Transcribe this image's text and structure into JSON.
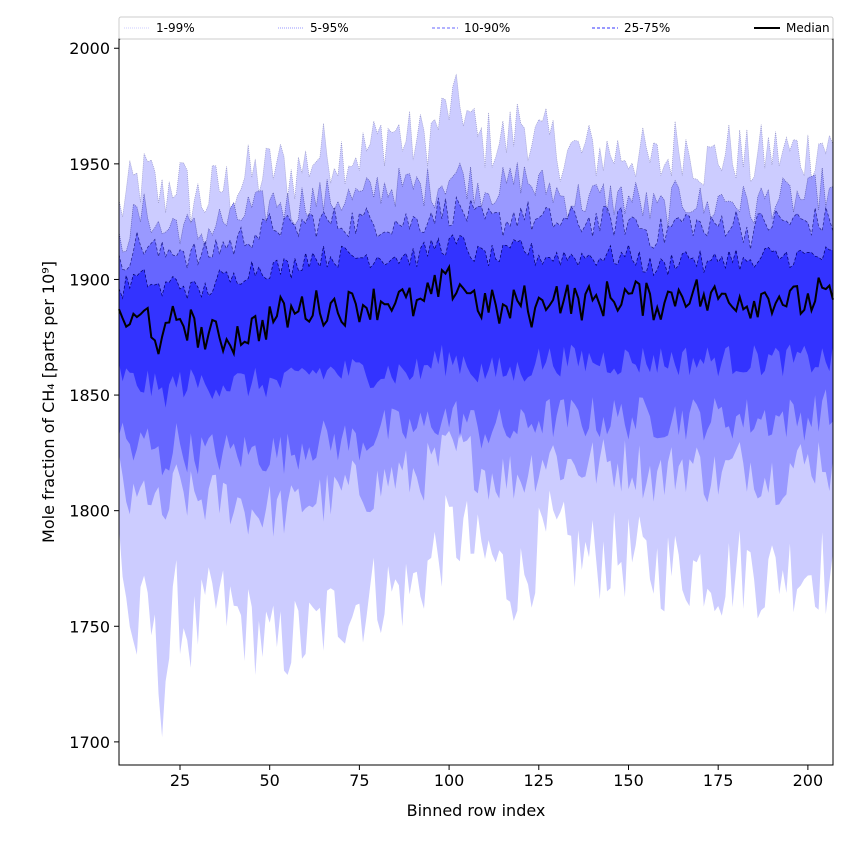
{
  "chart_data": {
    "type": "area",
    "title": "",
    "xlabel": "Binned row index",
    "ylabel": "Mole fraction of CH₄ [parts per 10⁹]",
    "xlim": [
      8,
      207
    ],
    "ylim": [
      1690,
      2004
    ],
    "x_ticks": [
      25,
      50,
      75,
      100,
      125,
      150,
      175,
      200
    ],
    "y_ticks": [
      1700,
      1750,
      1800,
      1850,
      1900,
      1950,
      2000
    ],
    "legend_position": "top (horizontal strip above plot)",
    "grid": false,
    "colors": {
      "band_1_99": "#ccccff",
      "band_5_95": "#9999ff",
      "band_10_90": "#6666ff",
      "band_25_75": "#3333ff",
      "median": "#000000"
    },
    "legend": [
      {
        "label": "1-99%",
        "style": "dotted",
        "color": "#ccccff"
      },
      {
        "label": "5-95%",
        "style": "dotted",
        "color": "#9999ff"
      },
      {
        "label": "10-90%",
        "style": "dashed",
        "color": "#6666ff"
      },
      {
        "label": "25-75%",
        "style": "dashed",
        "color": "#3333ff"
      },
      {
        "label": "Median",
        "style": "solid",
        "color": "#000000"
      }
    ],
    "x_anchor": [
      8,
      12,
      16,
      20,
      24,
      28,
      32,
      36,
      40,
      44,
      48,
      52,
      56,
      60,
      64,
      68,
      72,
      76,
      80,
      84,
      88,
      92,
      96,
      100,
      104,
      108,
      112,
      116,
      120,
      124,
      128,
      132,
      136,
      140,
      144,
      148,
      152,
      156,
      160,
      164,
      168,
      172,
      176,
      180,
      184,
      188,
      192,
      196,
      200,
      204,
      207
    ],
    "series": [
      {
        "name": "1-99%",
        "lower": [
          1790,
          1740,
          1760,
          1720,
          1760,
          1745,
          1755,
          1760,
          1755,
          1750,
          1745,
          1740,
          1745,
          1745,
          1750,
          1755,
          1760,
          1760,
          1765,
          1765,
          1765,
          1770,
          1780,
          1790,
          1790,
          1780,
          1780,
          1770,
          1770,
          1780,
          1790,
          1785,
          1780,
          1780,
          1780,
          1780,
          1780,
          1775,
          1775,
          1775,
          1775,
          1775,
          1770,
          1775,
          1775,
          1770,
          1775,
          1775,
          1775,
          1775,
          1765
        ],
        "upper": [
          1930,
          1940,
          1945,
          1935,
          1945,
          1935,
          1935,
          1940,
          1940,
          1945,
          1945,
          1950,
          1945,
          1950,
          1955,
          1955,
          1955,
          1955,
          1960,
          1965,
          1960,
          1960,
          1965,
          1975,
          1975,
          1960,
          1960,
          1960,
          1970,
          1960,
          1960,
          1955,
          1955,
          1955,
          1955,
          1955,
          1955,
          1950,
          1950,
          1960,
          1955,
          1950,
          1955,
          1955,
          1950,
          1955,
          1955,
          1955,
          1955,
          1960,
          1955
        ]
      },
      {
        "name": "5-95%",
        "lower": [
          1815,
          1800,
          1810,
          1795,
          1810,
          1805,
          1805,
          1805,
          1805,
          1800,
          1800,
          1800,
          1800,
          1805,
          1805,
          1805,
          1810,
          1810,
          1810,
          1815,
          1815,
          1815,
          1820,
          1825,
          1825,
          1820,
          1815,
          1815,
          1815,
          1820,
          1825,
          1820,
          1820,
          1820,
          1820,
          1820,
          1820,
          1815,
          1815,
          1820,
          1820,
          1815,
          1815,
          1820,
          1820,
          1815,
          1815,
          1820,
          1820,
          1825,
          1815
        ],
        "upper": [
          1915,
          1925,
          1930,
          1920,
          1925,
          1920,
          1920,
          1925,
          1925,
          1930,
          1930,
          1935,
          1930,
          1935,
          1935,
          1935,
          1935,
          1935,
          1940,
          1940,
          1940,
          1940,
          1940,
          1945,
          1945,
          1940,
          1940,
          1940,
          1945,
          1940,
          1940,
          1935,
          1935,
          1935,
          1935,
          1935,
          1935,
          1930,
          1930,
          1935,
          1935,
          1930,
          1935,
          1935,
          1930,
          1935,
          1935,
          1935,
          1935,
          1940,
          1935
        ]
      },
      {
        "name": "10-90%",
        "lower": [
          1835,
          1825,
          1830,
          1820,
          1830,
          1825,
          1825,
          1825,
          1825,
          1825,
          1825,
          1825,
          1825,
          1830,
          1830,
          1830,
          1830,
          1830,
          1835,
          1835,
          1835,
          1835,
          1840,
          1840,
          1840,
          1835,
          1835,
          1835,
          1835,
          1840,
          1840,
          1840,
          1840,
          1840,
          1840,
          1840,
          1840,
          1840,
          1840,
          1840,
          1840,
          1840,
          1840,
          1840,
          1840,
          1840,
          1840,
          1840,
          1840,
          1845,
          1840
        ],
        "upper": [
          1905,
          1915,
          1915,
          1910,
          1915,
          1910,
          1910,
          1915,
          1915,
          1920,
          1920,
          1925,
          1920,
          1925,
          1925,
          1925,
          1925,
          1925,
          1925,
          1925,
          1925,
          1925,
          1930,
          1930,
          1930,
          1925,
          1925,
          1925,
          1930,
          1925,
          1925,
          1925,
          1925,
          1925,
          1925,
          1925,
          1925,
          1920,
          1920,
          1925,
          1925,
          1920,
          1925,
          1925,
          1920,
          1925,
          1925,
          1925,
          1925,
          1925,
          1925
        ]
      },
      {
        "name": "25-75%",
        "lower": [
          1860,
          1855,
          1855,
          1850,
          1855,
          1855,
          1855,
          1855,
          1855,
          1855,
          1855,
          1855,
          1855,
          1860,
          1860,
          1860,
          1860,
          1860,
          1860,
          1860,
          1860,
          1860,
          1865,
          1865,
          1865,
          1860,
          1860,
          1860,
          1860,
          1865,
          1865,
          1865,
          1865,
          1865,
          1865,
          1865,
          1865,
          1865,
          1865,
          1865,
          1865,
          1865,
          1865,
          1865,
          1865,
          1865,
          1865,
          1865,
          1865,
          1865,
          1865
        ],
        "upper": [
          1895,
          1900,
          1900,
          1895,
          1900,
          1895,
          1895,
          1900,
          1900,
          1905,
          1905,
          1905,
          1905,
          1910,
          1910,
          1910,
          1910,
          1910,
          1910,
          1910,
          1910,
          1910,
          1915,
          1915,
          1915,
          1910,
          1910,
          1910,
          1915,
          1910,
          1910,
          1910,
          1910,
          1910,
          1910,
          1910,
          1910,
          1905,
          1905,
          1910,
          1910,
          1905,
          1910,
          1910,
          1905,
          1910,
          1910,
          1910,
          1910,
          1910,
          1910
        ]
      },
      {
        "name": "Median",
        "values": [
          1885,
          1880,
          1885,
          1870,
          1885,
          1880,
          1875,
          1875,
          1875,
          1878,
          1880,
          1885,
          1885,
          1888,
          1888,
          1888,
          1888,
          1890,
          1890,
          1892,
          1890,
          1888,
          1895,
          1898,
          1898,
          1890,
          1888,
          1885,
          1892,
          1885,
          1895,
          1892,
          1890,
          1890,
          1892,
          1893,
          1893,
          1890,
          1890,
          1895,
          1895,
          1890,
          1893,
          1893,
          1890,
          1893,
          1893,
          1890,
          1890,
          1895,
          1887
        ]
      }
    ]
  }
}
